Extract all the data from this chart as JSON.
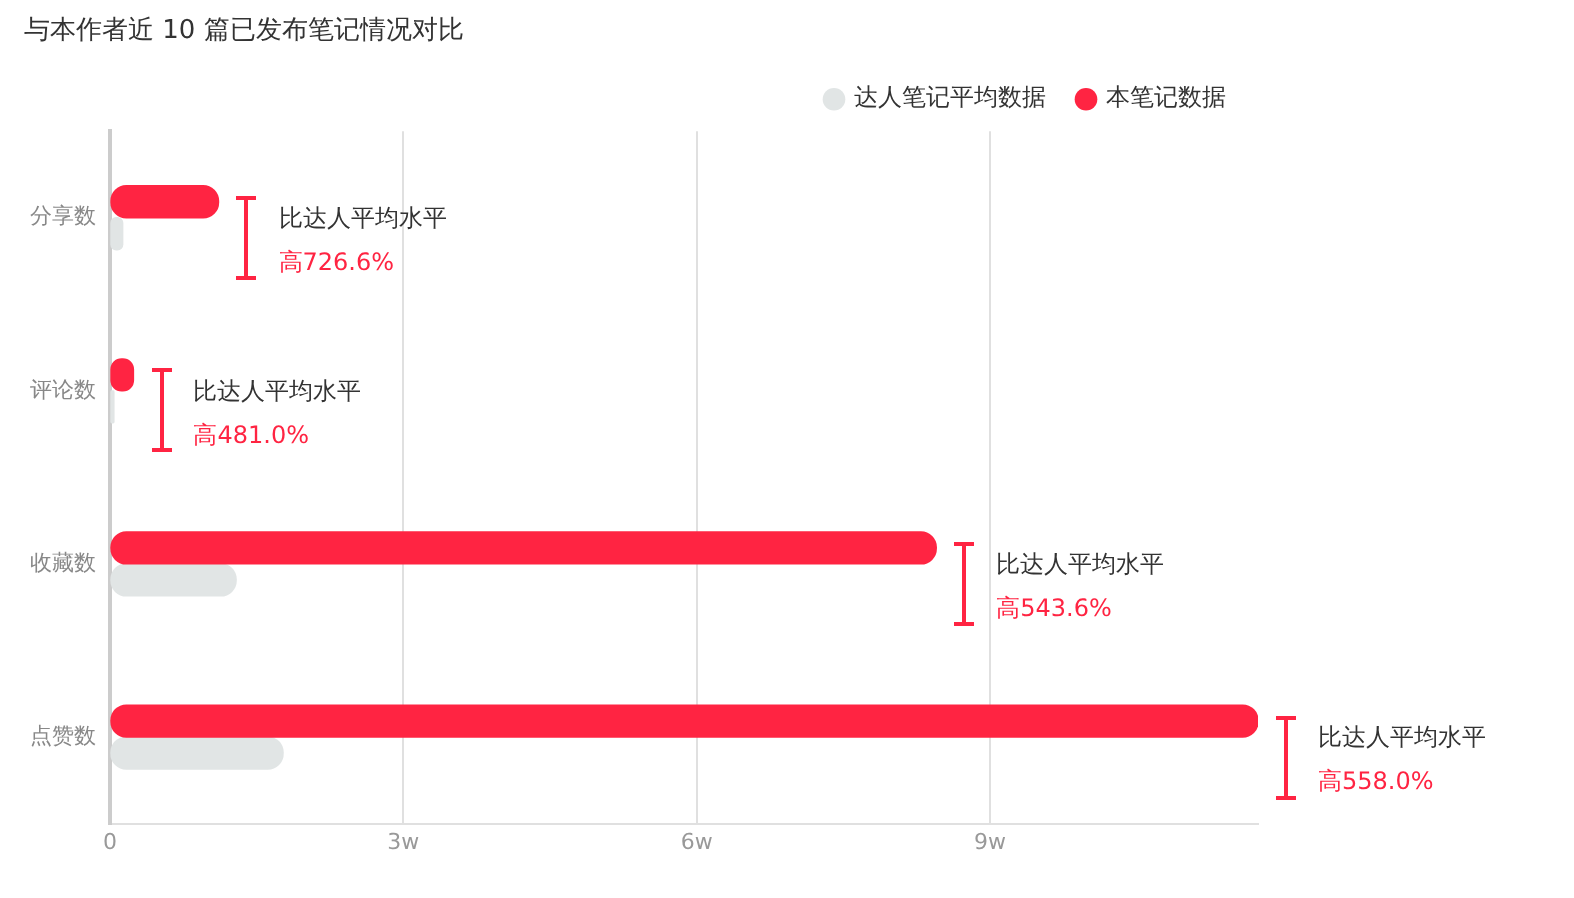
{
  "chart_data": {
    "type": "bar",
    "orientation": "horizontal",
    "title": "与本作者近 10 篇已发布笔记情况对比",
    "categories": [
      "分享数",
      "评论数",
      "收藏数",
      "点赞数"
    ],
    "series": [
      {
        "name": "本笔记数据",
        "color": "#ff2442",
        "values": [
          1.11,
          0.24,
          8.45,
          11.74
        ]
      },
      {
        "name": "达人笔记平均数据",
        "color": "#e1e5e5",
        "values": [
          0.13,
          0.04,
          1.29,
          1.77
        ]
      }
    ],
    "xlim": [
      0,
      11.74
    ],
    "xticks": [
      0,
      {
        "value": 3,
        "label": "3w"
      },
      {
        "value": 6,
        "label": "6w"
      },
      {
        "value": 9,
        "label": "9w"
      }
    ],
    "grid": "x",
    "legend": "top right",
    "annotations": [
      {
        "text": "比达人平均水平",
        "x": 1.11,
        "y": "分享数"
      },
      {
        "text": "高726.6%",
        "x": 1.11,
        "y": "分享数"
      },
      {
        "text": "比达人平均水平",
        "x": 0.24,
        "y": "评论数"
      },
      {
        "text": "高481.0%",
        "x": 0.24,
        "y": "评论数"
      },
      {
        "text": "比达人平均水平",
        "x": 8.45,
        "y": "收藏数"
      },
      {
        "text": "高543.6%",
        "x": 8.45,
        "y": "收藏数"
      },
      {
        "text": "比达人平均水平",
        "x": 11.74,
        "y": "点赞数"
      },
      {
        "text": "高558.0%",
        "x": 11.74,
        "y": "点赞数"
      }
    ]
  }
}
